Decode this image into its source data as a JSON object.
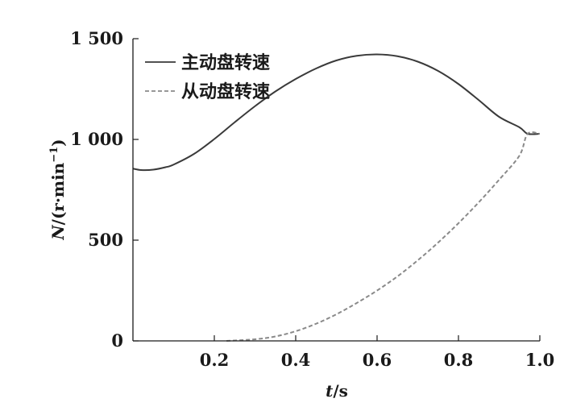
{
  "chart_data": {
    "type": "line",
    "title": "",
    "xlabel_var": "t",
    "xlabel_unit": "/s",
    "ylabel_var": "N",
    "ylabel_unit_pre": "/(r·min",
    "ylabel_unit_exp": "−1",
    "ylabel_unit_post": ")",
    "xlim": [
      0,
      1.0
    ],
    "ylim": [
      0,
      1500
    ],
    "x_ticks": [
      {
        "v": 0.2,
        "label": "0.2"
      },
      {
        "v": 0.4,
        "label": "0.4"
      },
      {
        "v": 0.6,
        "label": "0.6"
      },
      {
        "v": 0.8,
        "label": "0.8"
      },
      {
        "v": 1.0,
        "label": "1.0"
      }
    ],
    "y_ticks": [
      {
        "v": 0,
        "label": "0"
      },
      {
        "v": 500,
        "label": "500"
      },
      {
        "v": 1000,
        "label": "1 000"
      },
      {
        "v": 1500,
        "label": "1 500"
      }
    ],
    "grid": false,
    "legend_position": "top-left",
    "series": [
      {
        "name": "主动盘转速",
        "color": "#3a3a3a",
        "dash": "solid",
        "x": [
          0,
          0.02,
          0.05,
          0.08,
          0.1,
          0.15,
          0.2,
          0.25,
          0.3,
          0.35,
          0.4,
          0.45,
          0.5,
          0.55,
          0.6,
          0.65,
          0.7,
          0.75,
          0.8,
          0.85,
          0.9,
          0.95,
          0.97,
          1.0
        ],
        "y": [
          855,
          848,
          850,
          862,
          875,
          928,
          1002,
          1085,
          1165,
          1238,
          1300,
          1352,
          1392,
          1415,
          1422,
          1413,
          1386,
          1340,
          1275,
          1195,
          1112,
          1060,
          1028,
          1028
        ]
      },
      {
        "name": "从动盘转速",
        "color": "#8a8a8a",
        "dash": "dashed",
        "x": [
          0.23,
          0.3,
          0.35,
          0.4,
          0.45,
          0.5,
          0.55,
          0.6,
          0.65,
          0.7,
          0.75,
          0.8,
          0.85,
          0.9,
          0.95,
          0.97,
          1.0
        ],
        "y": [
          0,
          8,
          22,
          48,
          85,
          132,
          188,
          250,
          320,
          400,
          488,
          584,
          688,
          800,
          920,
          1028,
          1028
        ]
      }
    ]
  }
}
